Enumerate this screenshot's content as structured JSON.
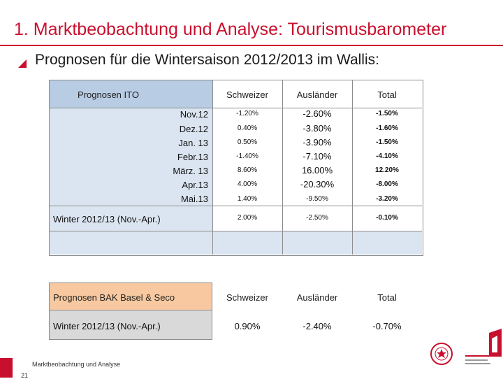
{
  "header": {
    "title": "1. Marktbeobachtung und Analyse: Tourismusbarometer",
    "subtitle": "Prognosen für die Wintersaison 2012/2013 im Wallis:"
  },
  "ito_table": {
    "label": "Prognosen ITO",
    "columns": [
      "Schweizer",
      "Ausländer",
      "Total"
    ],
    "rows": [
      {
        "month": "Nov.12",
        "schweizer": "-1.20%",
        "auslaender": "-2.60%",
        "total": "-1.50%"
      },
      {
        "month": "Dez.12",
        "schweizer": "0.40%",
        "auslaender": "-3.80%",
        "total": "-1.60%"
      },
      {
        "month": "Jan. 13",
        "schweizer": "0.50%",
        "auslaender": "-3.90%",
        "total": "-1.50%"
      },
      {
        "month": "Febr.13",
        "schweizer": "-1.40%",
        "auslaender": "-7.10%",
        "total": "-4.10%"
      },
      {
        "month": "März. 13",
        "schweizer": "8.60%",
        "auslaender": "16.00%",
        "total": "12.20%"
      },
      {
        "month": "Apr.13",
        "schweizer": "4.00%",
        "auslaender": "-20.30%",
        "total": "-8.00%"
      },
      {
        "month": "Mai.13",
        "schweizer": "1.40%",
        "auslaender": "-9.50%",
        "total": "-3.20%"
      }
    ],
    "winter": {
      "label": "Winter 2012/13 (Nov.-Apr.)",
      "schweizer": "2.00%",
      "auslaender": "-2.50%",
      "total": "-0.10%"
    }
  },
  "bak_table": {
    "label": "Prognosen BAK Basel & Seco",
    "columns": [
      "Schweizer",
      "Ausländer",
      "Total"
    ],
    "winter": {
      "label": "Winter 2012/13 (Nov.-Apr.)",
      "schweizer": "0.90%",
      "auslaender": "-2.40%",
      "total": "-0.70%"
    }
  },
  "footer": {
    "text": "Marktbeobachtung und Analyse",
    "page": "21"
  },
  "colors": {
    "accent": "#c8102e",
    "ito_label_bg": "#b8cce4",
    "table_blue": "#dbe5f1",
    "bak_label_bg": "#f8c9a0",
    "bak_row_bg": "#d9d9d9"
  }
}
